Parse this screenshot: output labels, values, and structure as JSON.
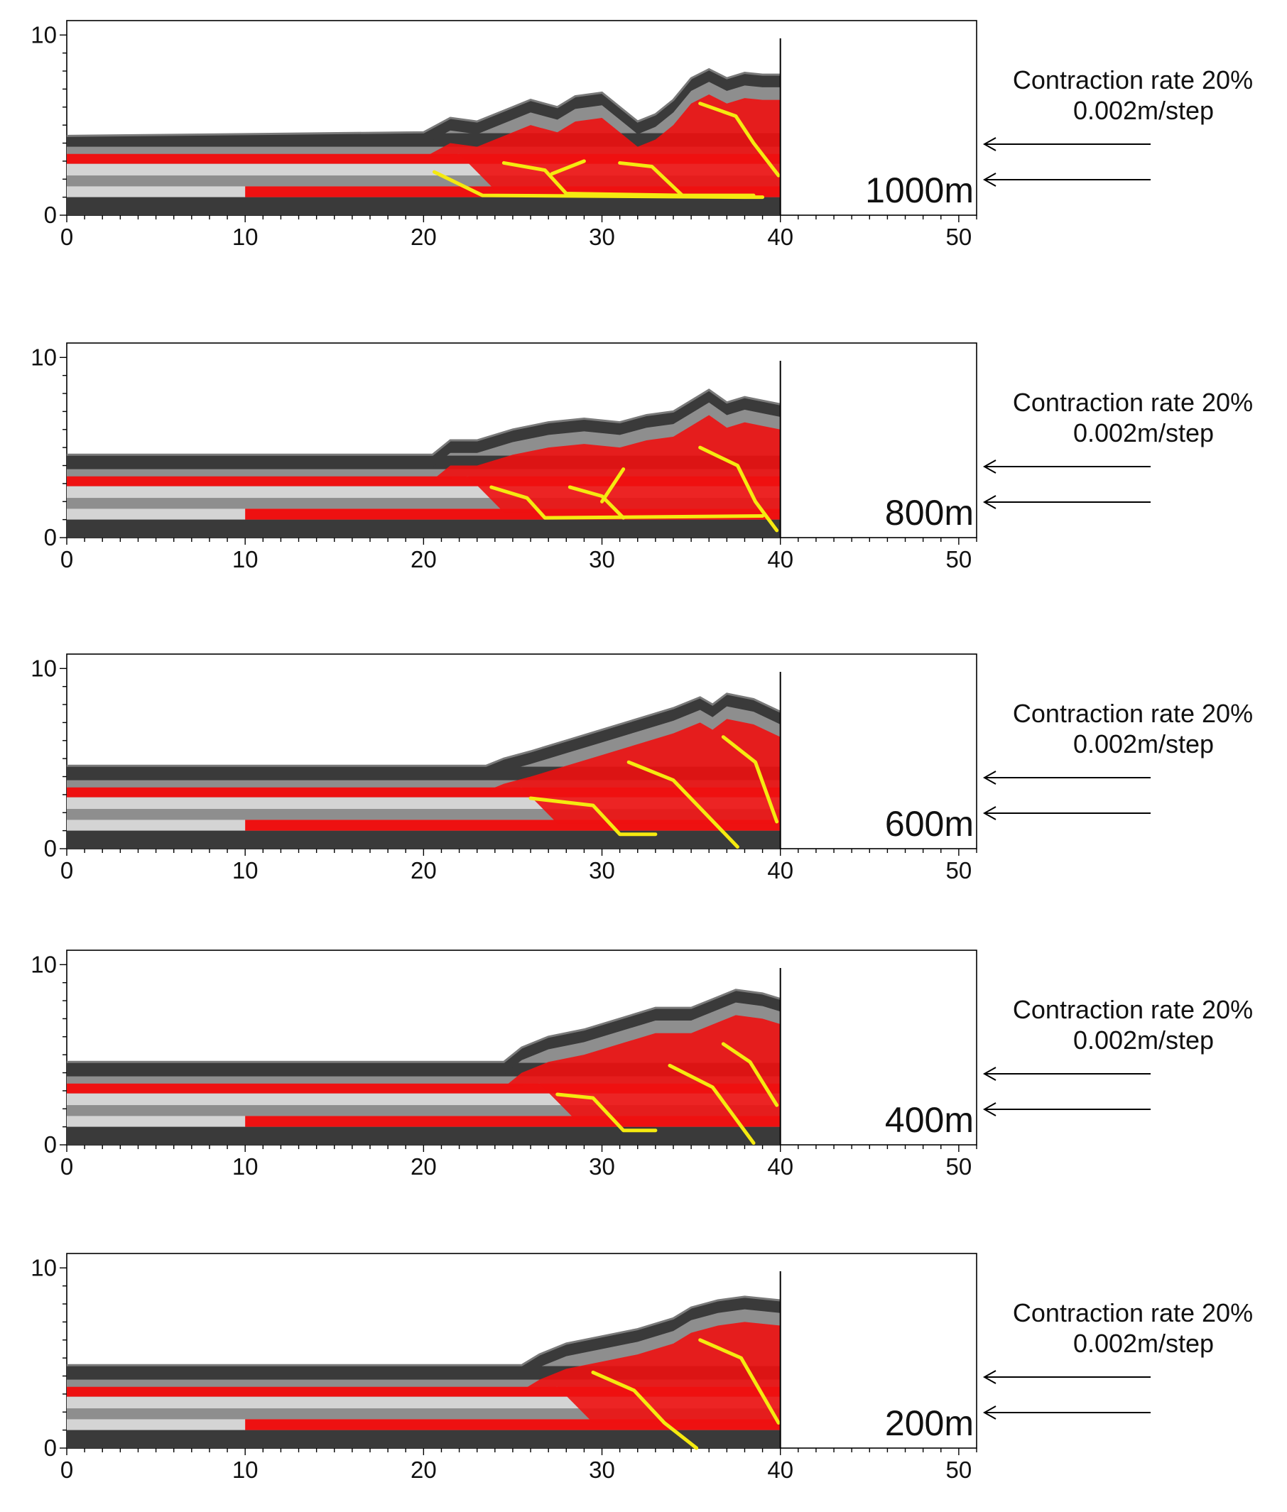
{
  "panels": [
    {
      "displacement_label": "1000m",
      "rate_line1": "Contraction rate 20%",
      "rate_line2": "0.002m/step",
      "front": [
        [
          0,
          4.4
        ],
        [
          10,
          4.5
        ],
        [
          20,
          4.6
        ],
        [
          21.5,
          5.4
        ],
        [
          23,
          5.2
        ],
        [
          24.5,
          5.8
        ],
        [
          26,
          6.4
        ],
        [
          27.5,
          6.0
        ],
        [
          28.5,
          6.6
        ],
        [
          30,
          6.8
        ],
        [
          31,
          6.0
        ],
        [
          32,
          5.2
        ],
        [
          33,
          5.6
        ],
        [
          34,
          6.4
        ],
        [
          35,
          7.6
        ],
        [
          36,
          8.1
        ],
        [
          37,
          7.6
        ],
        [
          38,
          7.9
        ],
        [
          39,
          7.8
        ],
        [
          40,
          7.8
        ]
      ],
      "red_bottom": 10,
      "bands": [
        4.2,
        3.4,
        2.9,
        2.2,
        1.6,
        1.0
      ],
      "faults": [
        [
          [
            20.6,
            2.4
          ],
          [
            23.3,
            1.1
          ],
          [
            38.0,
            1.0
          ],
          [
            39.0,
            1.0
          ]
        ],
        [
          [
            24.5,
            2.9
          ],
          [
            26.8,
            2.5
          ],
          [
            28.0,
            1.2
          ],
          [
            34.5,
            1.1
          ],
          [
            38.5,
            1.1
          ]
        ],
        [
          [
            27.2,
            2.3
          ],
          [
            29.0,
            3.0
          ]
        ],
        [
          [
            31.0,
            2.9
          ],
          [
            32.8,
            2.7
          ],
          [
            34.5,
            1.1
          ]
        ],
        [
          [
            35.5,
            6.2
          ],
          [
            37.5,
            5.5
          ],
          [
            38.5,
            4.0
          ],
          [
            39.9,
            2.2
          ]
        ]
      ]
    },
    {
      "displacement_label": "800m",
      "rate_line1": "Contraction rate 20%",
      "rate_line2": "0.002m/step",
      "front": [
        [
          0,
          4.6
        ],
        [
          10,
          4.6
        ],
        [
          20.5,
          4.6
        ],
        [
          21.5,
          5.4
        ],
        [
          23,
          5.4
        ],
        [
          25,
          6.0
        ],
        [
          27,
          6.4
        ],
        [
          29,
          6.6
        ],
        [
          31,
          6.4
        ],
        [
          32.5,
          6.8
        ],
        [
          34,
          7.0
        ],
        [
          35,
          7.6
        ],
        [
          36,
          8.2
        ],
        [
          37,
          7.5
        ],
        [
          38,
          7.8
        ],
        [
          39,
          7.6
        ],
        [
          40,
          7.4
        ]
      ],
      "red_bottom": 10,
      "bands": [
        4.2,
        3.4,
        2.9,
        2.2,
        1.6,
        1.0
      ],
      "faults": [
        [
          [
            23.8,
            2.8
          ],
          [
            25.8,
            2.2
          ],
          [
            26.8,
            1.1
          ],
          [
            39.0,
            1.2
          ]
        ],
        [
          [
            28.2,
            2.8
          ],
          [
            30.0,
            2.3
          ],
          [
            31.2,
            1.1
          ]
        ],
        [
          [
            30.0,
            2.0
          ],
          [
            31.2,
            3.8
          ]
        ],
        [
          [
            35.5,
            5.0
          ],
          [
            37.6,
            4.0
          ],
          [
            38.6,
            2.0
          ],
          [
            39.8,
            0.4
          ]
        ]
      ]
    },
    {
      "displacement_label": "600m",
      "rate_line1": "Contraction rate 20%",
      "rate_line2": "0.002m/step",
      "front": [
        [
          0,
          4.6
        ],
        [
          10,
          4.6
        ],
        [
          23.5,
          4.6
        ],
        [
          24.5,
          5.0
        ],
        [
          26,
          5.4
        ],
        [
          28,
          6.0
        ],
        [
          30,
          6.6
        ],
        [
          32,
          7.2
        ],
        [
          34,
          7.8
        ],
        [
          35.5,
          8.4
        ],
        [
          36.2,
          8.0
        ],
        [
          37,
          8.6
        ],
        [
          38.5,
          8.3
        ],
        [
          40,
          7.6
        ]
      ],
      "red_bottom": 10,
      "bands": [
        4.2,
        3.4,
        2.9,
        2.2,
        1.6,
        1.0
      ],
      "faults": [
        [
          [
            26.0,
            2.8
          ],
          [
            29.5,
            2.4
          ],
          [
            31.0,
            0.8
          ],
          [
            33.0,
            0.8
          ]
        ],
        [
          [
            31.5,
            4.8
          ],
          [
            34.0,
            3.8
          ],
          [
            37.6,
            0.1
          ]
        ],
        [
          [
            36.8,
            6.2
          ],
          [
            38.6,
            4.8
          ],
          [
            39.8,
            1.5
          ]
        ]
      ]
    },
    {
      "displacement_label": "400m",
      "rate_line1": "Contraction rate 20%",
      "rate_line2": "0.002m/step",
      "front": [
        [
          0,
          4.6
        ],
        [
          10,
          4.6
        ],
        [
          24.5,
          4.6
        ],
        [
          25.5,
          5.4
        ],
        [
          27,
          6.0
        ],
        [
          29,
          6.4
        ],
        [
          31,
          7.0
        ],
        [
          33,
          7.6
        ],
        [
          35,
          7.6
        ],
        [
          36.5,
          8.2
        ],
        [
          37.5,
          8.6
        ],
        [
          39,
          8.4
        ],
        [
          40,
          8.1
        ]
      ],
      "red_bottom": 10,
      "bands": [
        4.2,
        3.4,
        2.9,
        2.2,
        1.6,
        1.0
      ],
      "faults": [
        [
          [
            27.5,
            2.8
          ],
          [
            29.5,
            2.6
          ],
          [
            31.2,
            0.8
          ],
          [
            33.0,
            0.8
          ]
        ],
        [
          [
            33.8,
            4.4
          ],
          [
            36.2,
            3.2
          ],
          [
            38.5,
            0.1
          ]
        ],
        [
          [
            36.8,
            5.6
          ],
          [
            38.3,
            4.6
          ],
          [
            39.8,
            2.2
          ]
        ]
      ]
    },
    {
      "displacement_label": "200m",
      "rate_line1": "Contraction rate 20%",
      "rate_line2": "0.002m/step",
      "front": [
        [
          0,
          4.6
        ],
        [
          10,
          4.6
        ],
        [
          25.5,
          4.6
        ],
        [
          26.5,
          5.2
        ],
        [
          28,
          5.8
        ],
        [
          30,
          6.2
        ],
        [
          32,
          6.6
        ],
        [
          34,
          7.2
        ],
        [
          35,
          7.8
        ],
        [
          36.5,
          8.2
        ],
        [
          38,
          8.4
        ],
        [
          40,
          8.2
        ]
      ],
      "red_bottom": 10,
      "bands": [
        4.2,
        3.4,
        2.9,
        2.2,
        1.6,
        1.0
      ],
      "faults": [
        [
          [
            29.5,
            4.2
          ],
          [
            31.8,
            3.2
          ],
          [
            33.5,
            1.4
          ],
          [
            35.3,
            0.0
          ]
        ],
        [
          [
            35.5,
            6.0
          ],
          [
            37.8,
            5.0
          ],
          [
            39.9,
            1.4
          ]
        ]
      ]
    }
  ],
  "axes": {
    "x_ticks": [
      "0",
      "10",
      "20",
      "30",
      "40",
      "50"
    ],
    "y_ticks": [
      "0",
      "10"
    ],
    "x_range": [
      0,
      51
    ],
    "y_range": [
      0,
      10.8
    ]
  },
  "colors": {
    "red_layer": "#ee1111",
    "light_gray": "#d4d4d4",
    "mid_gray": "#8e8e8e",
    "dark_gray": "#3a3a3a",
    "fault": "#f5ea10",
    "backstop": "#000000"
  }
}
